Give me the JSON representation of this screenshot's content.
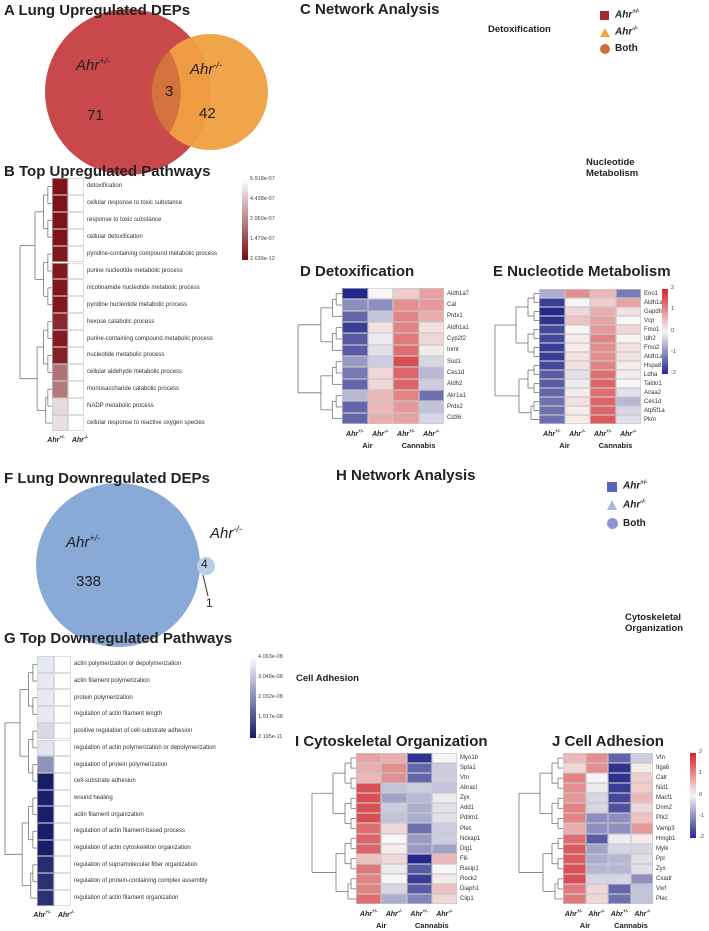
{
  "colors": {
    "up_red": "#c8484c",
    "venn_orange": "#f0a040",
    "down_blue": "#89a9d6",
    "node_red": "#a52a2a",
    "node_tan": "#cdb394",
    "node_blue": "#5a64b8",
    "node_peach": "#f0d2aa",
    "ellipse_pink": "#f6d5d5",
    "ellipse_blue": "#a9d6e3"
  },
  "genotypes": {
    "het": {
      "base": "Ahr",
      "sup": "+/-"
    },
    "ko": {
      "base": "Ahr",
      "sup": "-/-"
    }
  },
  "groups": {
    "air": "Air",
    "cannabis": "Cannabis"
  },
  "panelA": {
    "title": "A Lung Upregulated DEPs",
    "left_count": "71",
    "overlap_count": "3",
    "right_count": "42"
  },
  "panelB": {
    "title": "B Top Upregulated Pathways",
    "pathways": [
      "detoxification",
      "cellular response to toxic substance",
      "response to toxic substance",
      "cellular detoxification",
      "pyridine-containing compound metabolic process",
      "purine nucleotide metabolic process",
      "nicotinamide nucleotide metabolic process",
      "pyridine nucleotide metabolic process",
      "hexose catabolic process",
      "purine-containing compound metabolic process",
      "nucleotide metabolic process",
      "cellular aldehyde metabolic process",
      "monosaccharide catabolic process",
      "NADP metabolic process",
      "cellular response to reactive oxygen species"
    ],
    "values_het": [
      2e-08,
      2e-08,
      2e-08,
      2e-08,
      3e-08,
      3e-08,
      3e-08,
      3e-08,
      7e-08,
      4e-08,
      5e-08,
      2.6e-07,
      2.7e-07,
      5.2e-07,
      5.3e-07
    ],
    "colorbar": {
      "min": 2.639e-12,
      "max": 5.918e-07,
      "ticks": [
        "5.918e-07",
        "4.438e-07",
        "2.959e-07",
        "1.479e-07",
        "2.639e-12"
      ]
    }
  },
  "panelC": {
    "title": "C Network Analysis",
    "cluster1": "Detoxification",
    "cluster2_line1": "Nucleotide",
    "cluster2_line2": "Metabolism",
    "legend_both": "Both"
  },
  "panelD": {
    "title": "D Detoxification",
    "genes": [
      "Aldh1a7",
      "Cat",
      "Prdx1",
      "Aldh1a1",
      "Cyp2f2",
      "Inmt",
      "Sod1",
      "Ces1d",
      "Aldh2",
      "Akr1a1",
      "Prdx2",
      "Cd36"
    ],
    "values": [
      [
        -2,
        0,
        0.4,
        0.8
      ],
      [
        -1,
        -1,
        1,
        0.9
      ],
      [
        -1.4,
        -0.5,
        1.1,
        0.7
      ],
      [
        -1.8,
        0.2,
        1.1,
        0.2
      ],
      [
        -1.5,
        -0.1,
        1.2,
        0.3
      ],
      [
        -1.5,
        -0.2,
        1.3,
        0.1
      ],
      [
        -0.9,
        -0.4,
        1.6,
        -0.3
      ],
      [
        -1.2,
        0.3,
        1.4,
        -0.6
      ],
      [
        -1.4,
        0.3,
        1.4,
        -0.4
      ],
      [
        -0.6,
        0.6,
        1.1,
        -1.3
      ],
      [
        -1.4,
        0.6,
        0.9,
        -0.5
      ],
      [
        -1.4,
        0.7,
        0.8,
        -0.3
      ]
    ]
  },
  "panelE": {
    "title": "E Nucleotide Metabolism",
    "genes": [
      "Eno1",
      "Aldh1a7",
      "Gapdh",
      "Vcp",
      "Fmo1",
      "Idh2",
      "Fmo2",
      "Aldh1a1",
      "Hspa8",
      "Ldha",
      "Taldo1",
      "Acaa2",
      "Ces1d",
      "Atp5f1a",
      "Pkm"
    ],
    "values": [
      [
        -0.7,
        1,
        0.6,
        -1.2
      ],
      [
        -1.8,
        0,
        0.4,
        0.8
      ],
      [
        -2,
        0.3,
        0.7,
        0.2
      ],
      [
        -1.9,
        0.5,
        0.8,
        0
      ],
      [
        -1.7,
        0,
        0.9,
        0.3
      ],
      [
        -1.7,
        0.1,
        1.1,
        0
      ],
      [
        -1.8,
        0.1,
        1,
        0.2
      ],
      [
        -1.8,
        0.2,
        1,
        0.2
      ],
      [
        -1.7,
        0.2,
        1.1,
        0.1
      ],
      [
        -1.5,
        -0.2,
        1.3,
        0.1
      ],
      [
        -1.5,
        -0.1,
        1.4,
        0
      ],
      [
        -1.4,
        0.1,
        1.3,
        -0.2
      ],
      [
        -1.3,
        0.2,
        1.4,
        -0.6
      ],
      [
        -1.3,
        0.1,
        1.4,
        -0.3
      ],
      [
        -1.3,
        0.1,
        1.5,
        -0.2
      ]
    ],
    "colorbar_ticks": [
      "2",
      "1",
      "0",
      "-1",
      "-2"
    ]
  },
  "panelF": {
    "title": "F Lung Downregulated DEPs",
    "left_count": "338",
    "overlap_count": "4",
    "right_count": "1"
  },
  "panelG": {
    "title": "G Top Downregulated Pathways",
    "pathways": [
      "actin polymerization or depolymerization",
      "actin filament polymerization",
      "protein polymerization",
      "regulation of actin filament length",
      "positive regulation of cell-substrate adhesion",
      "regulation of actin polymerization or depolymerization",
      "regulation of protein polymerization",
      "cell-substrate adhesion",
      "wound healing",
      "actin filament organization",
      "regulation of actin filament-based process",
      "regulation of actin cytoskeleton organization",
      "regulation of supramolecular fiber organization",
      "regulation of protein-containing complex assembly",
      "regulation of actin filament organization"
    ],
    "values_het": [
      3.8e-08,
      3.8e-08,
      3.8e-08,
      3.8e-08,
      3.5e-08,
      3.7e-08,
      2.2e-08,
      2e-10,
      1e-09,
      5e-10,
      3e-10,
      3e-10,
      3e-09,
      4e-09,
      4e-09
    ],
    "colorbar": {
      "min": 2.195e-11,
      "max": 4.063e-08,
      "ticks": [
        "4.063e-08",
        "3.048e-08",
        "2.032e-08",
        "1.017e-08",
        "2.195e-11"
      ]
    }
  },
  "panelH": {
    "title": "H Network Analysis",
    "cluster1_line1": "Cytoskeletal",
    "cluster1_line2": "Organization",
    "cluster2": "Cell Adhesion",
    "legend_both": "Both"
  },
  "panelI": {
    "title": "I Cytoskeletal Organization",
    "genes": [
      "Myo1b",
      "Spta1",
      "Vtn",
      "Abracl",
      "Zyx",
      "Add1",
      "Pdlim1",
      "Plec",
      "Nckap1",
      "Dlg1",
      "Flii",
      "Rasip1",
      "Rock2",
      "Diaph1",
      "Clip1"
    ],
    "values": [
      [
        0.8,
        0.7,
        -1.9,
        0
      ],
      [
        0.7,
        1,
        -1.4,
        -0.4
      ],
      [
        0.6,
        1,
        -1.4,
        -0.4
      ],
      [
        1.6,
        -0.5,
        -0.4,
        -0.5
      ],
      [
        1.6,
        -0.8,
        -0.6,
        -0.1
      ],
      [
        1.6,
        -0.4,
        -0.7,
        -0.2
      ],
      [
        1.6,
        -0.5,
        -0.7,
        -0.2
      ],
      [
        1.3,
        0.3,
        -1.3,
        -0.4
      ],
      [
        1.4,
        0,
        -0.9,
        -0.4
      ],
      [
        1.4,
        0.1,
        -0.9,
        -0.8
      ],
      [
        0.5,
        0.3,
        -2,
        0.6
      ],
      [
        1.2,
        -0.1,
        -1.5,
        0
      ],
      [
        1.1,
        0,
        -1.8,
        0.1
      ],
      [
        1.1,
        -0.3,
        -1.5,
        0.5
      ],
      [
        1.3,
        -0.7,
        -1.1,
        0.3
      ]
    ]
  },
  "panelJ": {
    "title": "J Cell Adhesion",
    "genes": [
      "Vtn",
      "Itga6",
      "Calr",
      "Nid1",
      "Macf1",
      "Dnm2",
      "Ptk2",
      "Vamp3",
      "Hmgb1",
      "Mylk",
      "Ppl",
      "Zyx",
      "Cxadr",
      "Vwf",
      "Plec"
    ],
    "values": [
      [
        0.6,
        1,
        -1.4,
        -0.4
      ],
      [
        0.3,
        1,
        -1.9,
        0.1
      ],
      [
        1.1,
        0,
        -1.9,
        0.4
      ],
      [
        1,
        -0.1,
        -1.8,
        0.4
      ],
      [
        0.9,
        -0.3,
        -1.7,
        0.6
      ],
      [
        1.1,
        -0.3,
        -1.6,
        0.3
      ],
      [
        1.1,
        -1,
        -1,
        0.5
      ],
      [
        0.7,
        -1,
        -1,
        0.9
      ],
      [
        1.3,
        -1.5,
        -0.1,
        0.1
      ],
      [
        1.5,
        -0.8,
        -0.3,
        -0.3
      ],
      [
        1.5,
        -0.7,
        -0.6,
        -0.2
      ],
      [
        1.6,
        -0.6,
        -0.6,
        -0.2
      ],
      [
        1.6,
        -0.3,
        -0.3,
        -1
      ],
      [
        1.2,
        0.3,
        -1.4,
        -0.5
      ],
      [
        1.2,
        0.3,
        -1.3,
        -0.5
      ]
    ],
    "colorbar_ticks": [
      "2",
      "1",
      "0",
      "-1",
      "-2"
    ]
  }
}
